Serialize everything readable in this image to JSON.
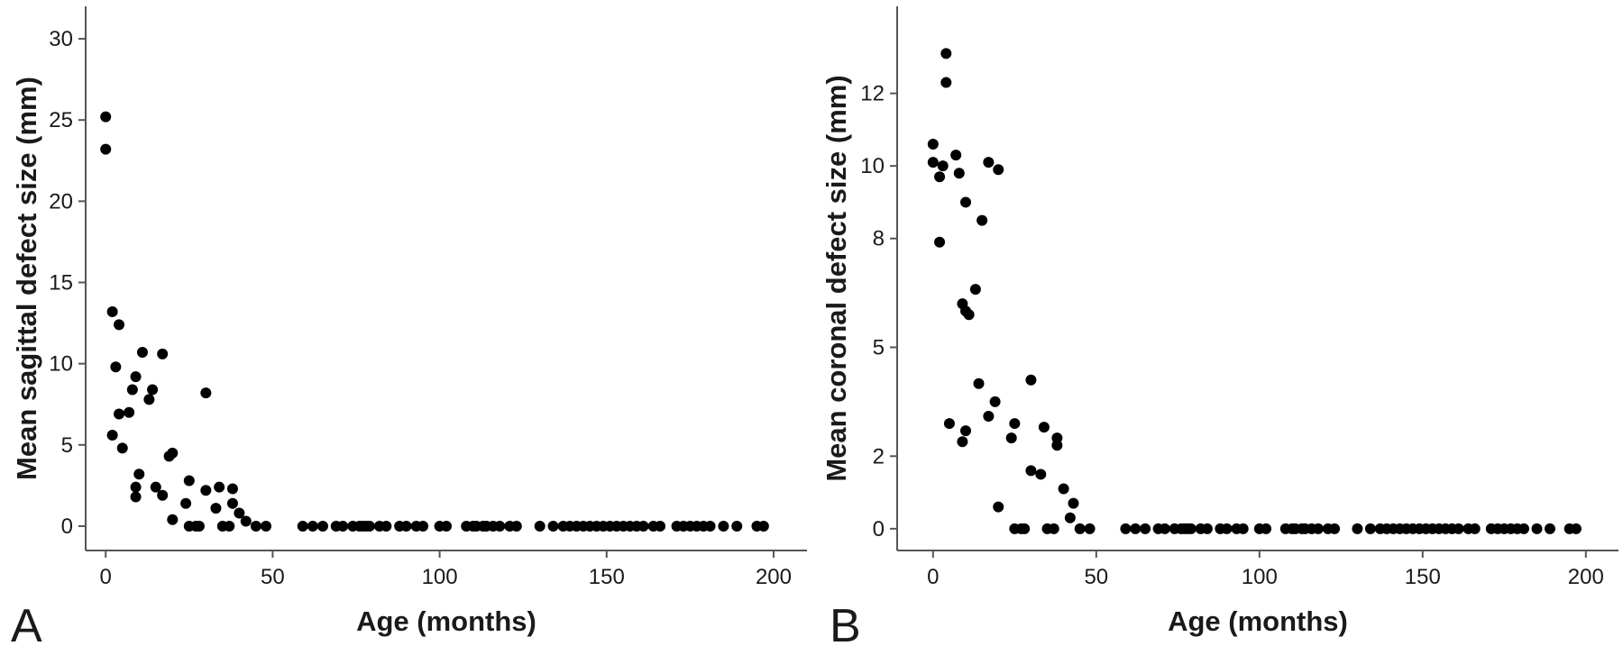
{
  "chart_data": [
    {
      "type": "scatter",
      "panel_label": "A",
      "xlabel": "Age (months)",
      "ylabel": "Mean sagittal defect size (mm)",
      "xlim": [
        -6,
        210
      ],
      "ylim": [
        -1.5,
        32
      ],
      "xticks": [
        0,
        50,
        100,
        150,
        200
      ],
      "yticks": [
        0,
        5,
        10,
        15,
        20,
        25,
        30
      ],
      "grid": false,
      "legend": "none",
      "marker_color": "#000000",
      "points": [
        [
          0,
          25.2
        ],
        [
          0,
          23.2
        ],
        [
          2,
          13.2
        ],
        [
          2,
          5.6
        ],
        [
          3,
          9.8
        ],
        [
          4,
          12.4
        ],
        [
          4,
          6.9
        ],
        [
          5,
          4.8
        ],
        [
          7,
          7.0
        ],
        [
          8,
          8.4
        ],
        [
          9,
          9.2
        ],
        [
          9,
          2.4
        ],
        [
          9,
          1.8
        ],
        [
          10,
          3.2
        ],
        [
          11,
          10.7
        ],
        [
          13,
          7.8
        ],
        [
          14,
          8.4
        ],
        [
          15,
          2.4
        ],
        [
          17,
          10.6
        ],
        [
          17,
          1.9
        ],
        [
          19,
          4.3
        ],
        [
          20,
          4.5
        ],
        [
          20,
          0.4
        ],
        [
          24,
          1.4
        ],
        [
          25,
          2.8
        ],
        [
          25,
          0
        ],
        [
          27,
          0
        ],
        [
          28,
          0
        ],
        [
          30,
          8.2
        ],
        [
          30,
          2.2
        ],
        [
          33,
          1.1
        ],
        [
          34,
          2.4
        ],
        [
          35,
          0
        ],
        [
          37,
          0
        ],
        [
          38,
          2.3
        ],
        [
          38,
          1.4
        ],
        [
          40,
          0.8
        ],
        [
          42,
          0.3
        ],
        [
          45,
          0
        ],
        [
          48,
          0
        ],
        [
          59,
          0
        ],
        [
          62,
          0
        ],
        [
          65,
          0
        ],
        [
          69,
          0
        ],
        [
          71,
          0
        ],
        [
          74,
          0
        ],
        [
          76,
          0
        ],
        [
          77,
          0
        ],
        [
          78,
          0
        ],
        [
          79,
          0
        ],
        [
          82,
          0
        ],
        [
          84,
          0
        ],
        [
          88,
          0
        ],
        [
          90,
          0
        ],
        [
          93,
          0
        ],
        [
          95,
          0
        ],
        [
          100,
          0
        ],
        [
          102,
          0
        ],
        [
          108,
          0
        ],
        [
          110,
          0
        ],
        [
          111,
          0
        ],
        [
          113,
          0
        ],
        [
          114,
          0
        ],
        [
          116,
          0
        ],
        [
          118,
          0
        ],
        [
          121,
          0
        ],
        [
          123,
          0
        ],
        [
          130,
          0
        ],
        [
          134,
          0
        ],
        [
          137,
          0
        ],
        [
          139,
          0
        ],
        [
          141,
          0
        ],
        [
          143,
          0
        ],
        [
          145,
          0
        ],
        [
          147,
          0
        ],
        [
          149,
          0
        ],
        [
          151,
          0
        ],
        [
          153,
          0
        ],
        [
          155,
          0
        ],
        [
          157,
          0
        ],
        [
          159,
          0
        ],
        [
          161,
          0
        ],
        [
          164,
          0
        ],
        [
          166,
          0
        ],
        [
          171,
          0
        ],
        [
          173,
          0
        ],
        [
          175,
          0
        ],
        [
          177,
          0
        ],
        [
          179,
          0
        ],
        [
          181,
          0
        ],
        [
          185,
          0
        ],
        [
          189,
          0
        ],
        [
          195,
          0
        ],
        [
          197,
          0
        ]
      ]
    },
    {
      "type": "scatter",
      "panel_label": "B",
      "xlabel": "Age (months)",
      "ylabel": "Mean coronal defect size (mm)",
      "xlim": [
        -11,
        210
      ],
      "ylim": [
        -0.6,
        14.4
      ],
      "xticks": [
        0,
        50,
        100,
        150,
        200
      ],
      "yticks": [
        0,
        2,
        5,
        8,
        10,
        12
      ],
      "grid": false,
      "legend": "none",
      "marker_color": "#000000",
      "points": [
        [
          0,
          10.6
        ],
        [
          0,
          10.1
        ],
        [
          2,
          9.7
        ],
        [
          2,
          7.9
        ],
        [
          3,
          10.0
        ],
        [
          4,
          13.1
        ],
        [
          4,
          12.3
        ],
        [
          5,
          2.9
        ],
        [
          7,
          10.3
        ],
        [
          8,
          9.8
        ],
        [
          9,
          6.2
        ],
        [
          9,
          2.4
        ],
        [
          10,
          6.0
        ],
        [
          10,
          2.7
        ],
        [
          10,
          9.0
        ],
        [
          11,
          5.9
        ],
        [
          13,
          6.6
        ],
        [
          14,
          4.0
        ],
        [
          15,
          8.5
        ],
        [
          17,
          10.1
        ],
        [
          17,
          3.1
        ],
        [
          19,
          3.5
        ],
        [
          20,
          9.9
        ],
        [
          20,
          0.6
        ],
        [
          24,
          2.5
        ],
        [
          25,
          2.9
        ],
        [
          25,
          0
        ],
        [
          27,
          0
        ],
        [
          28,
          0
        ],
        [
          30,
          4.1
        ],
        [
          30,
          1.6
        ],
        [
          33,
          1.5
        ],
        [
          34,
          2.8
        ],
        [
          35,
          0
        ],
        [
          37,
          0
        ],
        [
          38,
          2.5
        ],
        [
          38,
          2.3
        ],
        [
          40,
          1.1
        ],
        [
          42,
          0.3
        ],
        [
          43,
          0.7
        ],
        [
          45,
          0
        ],
        [
          48,
          0
        ],
        [
          59,
          0
        ],
        [
          62,
          0
        ],
        [
          65,
          0
        ],
        [
          69,
          0
        ],
        [
          71,
          0
        ],
        [
          74,
          0
        ],
        [
          76,
          0
        ],
        [
          77,
          0
        ],
        [
          78,
          0
        ],
        [
          79,
          0
        ],
        [
          82,
          0
        ],
        [
          84,
          0
        ],
        [
          88,
          0
        ],
        [
          90,
          0
        ],
        [
          93,
          0
        ],
        [
          95,
          0
        ],
        [
          100,
          0
        ],
        [
          102,
          0
        ],
        [
          108,
          0
        ],
        [
          110,
          0
        ],
        [
          111,
          0
        ],
        [
          113,
          0
        ],
        [
          114,
          0
        ],
        [
          116,
          0
        ],
        [
          118,
          0
        ],
        [
          121,
          0
        ],
        [
          123,
          0
        ],
        [
          130,
          0
        ],
        [
          134,
          0
        ],
        [
          137,
          0
        ],
        [
          139,
          0
        ],
        [
          141,
          0
        ],
        [
          143,
          0
        ],
        [
          145,
          0
        ],
        [
          147,
          0
        ],
        [
          149,
          0
        ],
        [
          151,
          0
        ],
        [
          153,
          0
        ],
        [
          155,
          0
        ],
        [
          157,
          0
        ],
        [
          159,
          0
        ],
        [
          161,
          0
        ],
        [
          164,
          0
        ],
        [
          166,
          0
        ],
        [
          171,
          0
        ],
        [
          173,
          0
        ],
        [
          175,
          0
        ],
        [
          177,
          0
        ],
        [
          179,
          0
        ],
        [
          181,
          0
        ],
        [
          185,
          0
        ],
        [
          189,
          0
        ],
        [
          195,
          0
        ],
        [
          197,
          0
        ]
      ]
    }
  ]
}
